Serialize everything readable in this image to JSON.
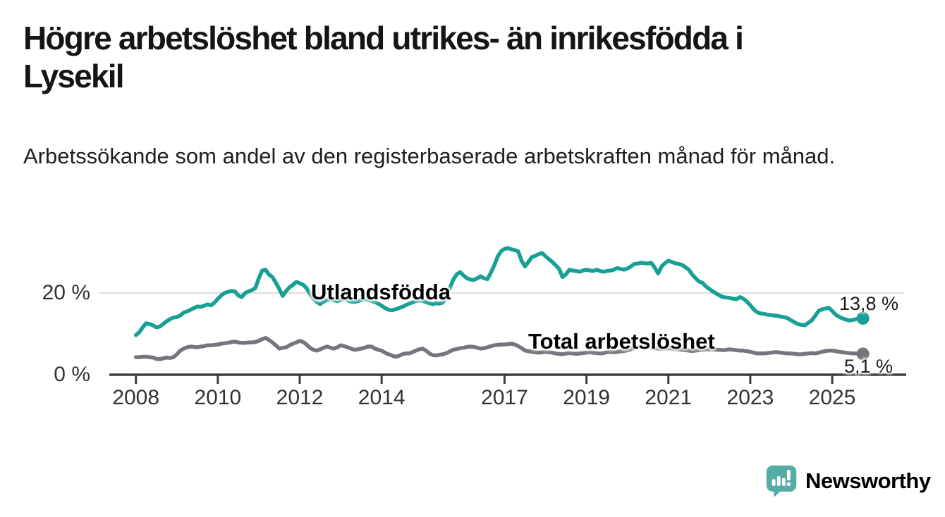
{
  "header": {
    "title": "Högre arbetslöshet bland utrikes- än inrikesfödda i Lysekil",
    "subtitle": "Arbetssökande som andel av den registerbaserade arbetskraften månad för månad."
  },
  "chart_data": {
    "type": "line",
    "title": "Högre arbetslöshet bland utrikes- än inrikesfödda i Lysekil",
    "subtitle": "Arbetssökande som andel av den registerbaserade arbetskraften månad för månad.",
    "unit": "%",
    "x_start": "2008-01",
    "x_end": "2025-10",
    "x_frequency": "monthly",
    "x_ticks": [
      2008,
      2010,
      2012,
      2014,
      2017,
      2019,
      2021,
      2023,
      2025
    ],
    "y_ticks": [
      {
        "value": 0,
        "label": "0 %"
      },
      {
        "value": 20,
        "label": "20 %"
      }
    ],
    "ylim": [
      0,
      33
    ],
    "grid": "horizontal gridline at 20 % only",
    "grid_color": "#dcdcdc",
    "axis_color": "#3d3d3d",
    "legend_position": "inline labels on lines",
    "series": [
      {
        "id": "utlandsfodda",
        "name": "Utlandsfödda",
        "color": "#17a096",
        "end_label": "13,8 %",
        "end_value": 13.8,
        "values": [
          9.7,
          10.4,
          11.6,
          12.6,
          12.4,
          12.1,
          11.6,
          11.8,
          12.4,
          13.1,
          13.6,
          14.0,
          14.1,
          14.5,
          15.2,
          15.5,
          15.9,
          16.3,
          16.7,
          16.6,
          16.9,
          17.2,
          17.0,
          17.6,
          18.6,
          19.4,
          20.0,
          20.3,
          20.5,
          20.4,
          19.4,
          19.0,
          20.0,
          20.4,
          20.7,
          21.2,
          23.6,
          25.5,
          25.7,
          24.5,
          23.9,
          22.5,
          21.0,
          19.3,
          20.5,
          21.4,
          22.0,
          22.7,
          22.4,
          22.0,
          21.2,
          19.8,
          18.6,
          17.8,
          17.3,
          17.9,
          18.3,
          18.5,
          18.2,
          18.0,
          18.3,
          18.6,
          18.2,
          17.9,
          17.8,
          18.0,
          18.3,
          18.5,
          18.4,
          18.1,
          17.8,
          17.4,
          16.9,
          16.3,
          15.9,
          15.8,
          16.0,
          16.3,
          16.6,
          17.0,
          17.4,
          17.7,
          18.0,
          18.2,
          18.1,
          17.8,
          17.5,
          17.3,
          17.5,
          17.4,
          17.7,
          19.0,
          21.3,
          23.3,
          24.6,
          25.1,
          24.3,
          23.6,
          23.3,
          23.2,
          23.6,
          24.1,
          23.6,
          23.4,
          25.0,
          26.8,
          28.9,
          30.2,
          30.8,
          31.0,
          30.7,
          30.5,
          30.2,
          27.9,
          26.5,
          27.6,
          28.8,
          29.1,
          29.5,
          29.8,
          29.0,
          28.3,
          27.6,
          26.8,
          25.9,
          23.9,
          24.6,
          25.7,
          25.5,
          25.4,
          25.2,
          25.5,
          25.7,
          25.5,
          25.4,
          25.7,
          25.4,
          25.2,
          25.4,
          25.5,
          25.7,
          26.1,
          25.9,
          25.7,
          26.0,
          26.5,
          27.1,
          27.2,
          27.4,
          27.3,
          27.2,
          27.4,
          26.2,
          24.8,
          26.5,
          27.3,
          27.9,
          27.6,
          27.3,
          27.1,
          26.9,
          26.3,
          25.7,
          24.5,
          23.6,
          22.8,
          22.5,
          21.6,
          21.0,
          20.4,
          19.9,
          19.4,
          19.0,
          18.9,
          18.8,
          18.6,
          18.5,
          19.0,
          18.6,
          17.9,
          17.0,
          16.0,
          15.3,
          15.0,
          14.9,
          14.7,
          14.6,
          14.5,
          14.4,
          14.2,
          14.1,
          13.8,
          13.3,
          12.8,
          12.4,
          12.2,
          12.1,
          12.7,
          13.3,
          14.4,
          15.6,
          16.0,
          16.2,
          16.4,
          15.6,
          14.7,
          14.2,
          13.8,
          13.5,
          13.3,
          13.4,
          13.6,
          13.7,
          13.8
        ]
      },
      {
        "id": "total",
        "name": "Total arbetslöshet",
        "color": "#76757d",
        "end_label": "5,1 %",
        "end_value": 5.1,
        "values": [
          4.3,
          4.3,
          4.4,
          4.4,
          4.3,
          4.2,
          3.9,
          3.8,
          4.0,
          4.2,
          4.1,
          4.3,
          5.0,
          5.9,
          6.4,
          6.7,
          6.9,
          6.8,
          6.7,
          6.9,
          7.0,
          7.2,
          7.2,
          7.3,
          7.4,
          7.6,
          7.7,
          7.8,
          8.0,
          8.1,
          7.9,
          7.8,
          7.8,
          7.9,
          7.9,
          8.0,
          8.3,
          8.7,
          9.0,
          8.5,
          7.9,
          7.2,
          6.4,
          6.6,
          6.7,
          7.2,
          7.6,
          7.9,
          8.3,
          8.0,
          7.4,
          6.6,
          6.1,
          5.9,
          6.2,
          6.6,
          6.9,
          6.6,
          6.4,
          6.7,
          7.2,
          7.0,
          6.7,
          6.4,
          6.1,
          6.2,
          6.4,
          6.6,
          6.9,
          6.9,
          6.4,
          6.1,
          5.9,
          5.4,
          5.0,
          4.7,
          4.4,
          4.6,
          5.0,
          5.2,
          5.2,
          5.5,
          5.9,
          6.2,
          6.4,
          5.9,
          5.2,
          4.8,
          4.7,
          4.9,
          5.0,
          5.3,
          5.7,
          6.1,
          6.3,
          6.5,
          6.6,
          6.8,
          6.9,
          6.8,
          6.6,
          6.4,
          6.5,
          6.7,
          7.0,
          7.2,
          7.3,
          7.4,
          7.4,
          7.5,
          7.6,
          7.4,
          7.0,
          6.5,
          5.9,
          5.8,
          5.6,
          5.5,
          5.4,
          5.5,
          5.6,
          5.5,
          5.4,
          5.2,
          5.1,
          5.0,
          5.2,
          5.3,
          5.2,
          5.1,
          5.2,
          5.3,
          5.4,
          5.5,
          5.4,
          5.3,
          5.2,
          5.3,
          5.5,
          5.6,
          5.5,
          5.6,
          5.7,
          5.8,
          6.0,
          6.2,
          6.6,
          6.9,
          7.0,
          6.9,
          6.8,
          6.7,
          6.5,
          6.4,
          6.3,
          6.4,
          6.5,
          6.4,
          6.3,
          6.2,
          6.1,
          6.0,
          5.9,
          5.8,
          5.9,
          6.0,
          6.1,
          6.2,
          6.2,
          6.2,
          6.1,
          6.1,
          6.0,
          6.1,
          6.2,
          6.1,
          6.0,
          5.9,
          5.9,
          5.8,
          5.6,
          5.4,
          5.2,
          5.2,
          5.2,
          5.3,
          5.4,
          5.5,
          5.5,
          5.4,
          5.3,
          5.2,
          5.2,
          5.1,
          5.0,
          5.0,
          5.1,
          5.2,
          5.3,
          5.2,
          5.4,
          5.6,
          5.8,
          5.9,
          5.9,
          5.8,
          5.6,
          5.5,
          5.4,
          5.3,
          5.2,
          5.2,
          5.1,
          5.1
        ]
      }
    ]
  },
  "branding": {
    "logo_text": "Newsworthy",
    "logo_text_color": "#3ba29b",
    "logo_icon_color": "#54aca5"
  }
}
